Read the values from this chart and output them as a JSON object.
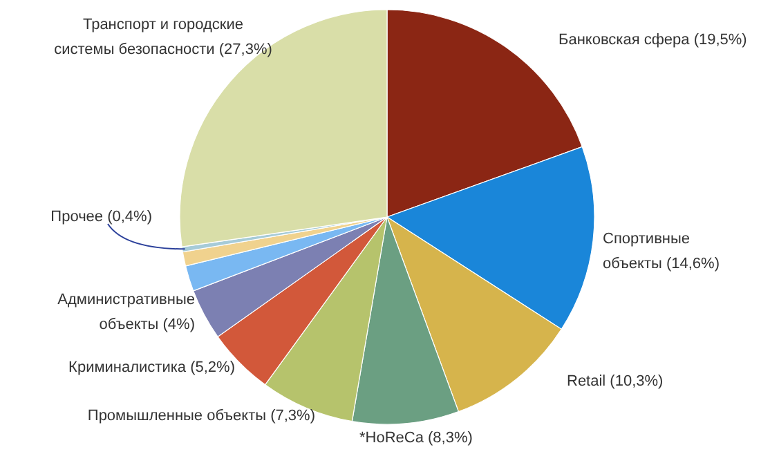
{
  "chart_data": {
    "type": "pie",
    "categories": [
      "Банковская сфера (19,5%)",
      "Спортивные\nобъекты (14,6%)",
      "Retail (10,3%)",
      "*HoReCa (8,3%)",
      "Промышленные объекты (7,3%)",
      "Криминалистика (5,2%)",
      "Административные\nобъекты (4%)",
      null,
      null,
      "Прочее (0,4%)",
      "Транспорт и городские\nсистемы безопасности (27,3%)"
    ],
    "values": [
      19.5,
      14.6,
      10.3,
      8.3,
      7.3,
      5.2,
      4,
      2.0,
      1.1,
      0.4,
      27.3
    ],
    "colors": [
      "#8b2614",
      "#1a86d9",
      "#d6b44c",
      "#6b9f82",
      "#b6c36c",
      "#d2583a",
      "#7c80b2",
      "#79b8f2",
      "#f0d28e",
      "#a6cbd8",
      "#d9dea8"
    ]
  }
}
